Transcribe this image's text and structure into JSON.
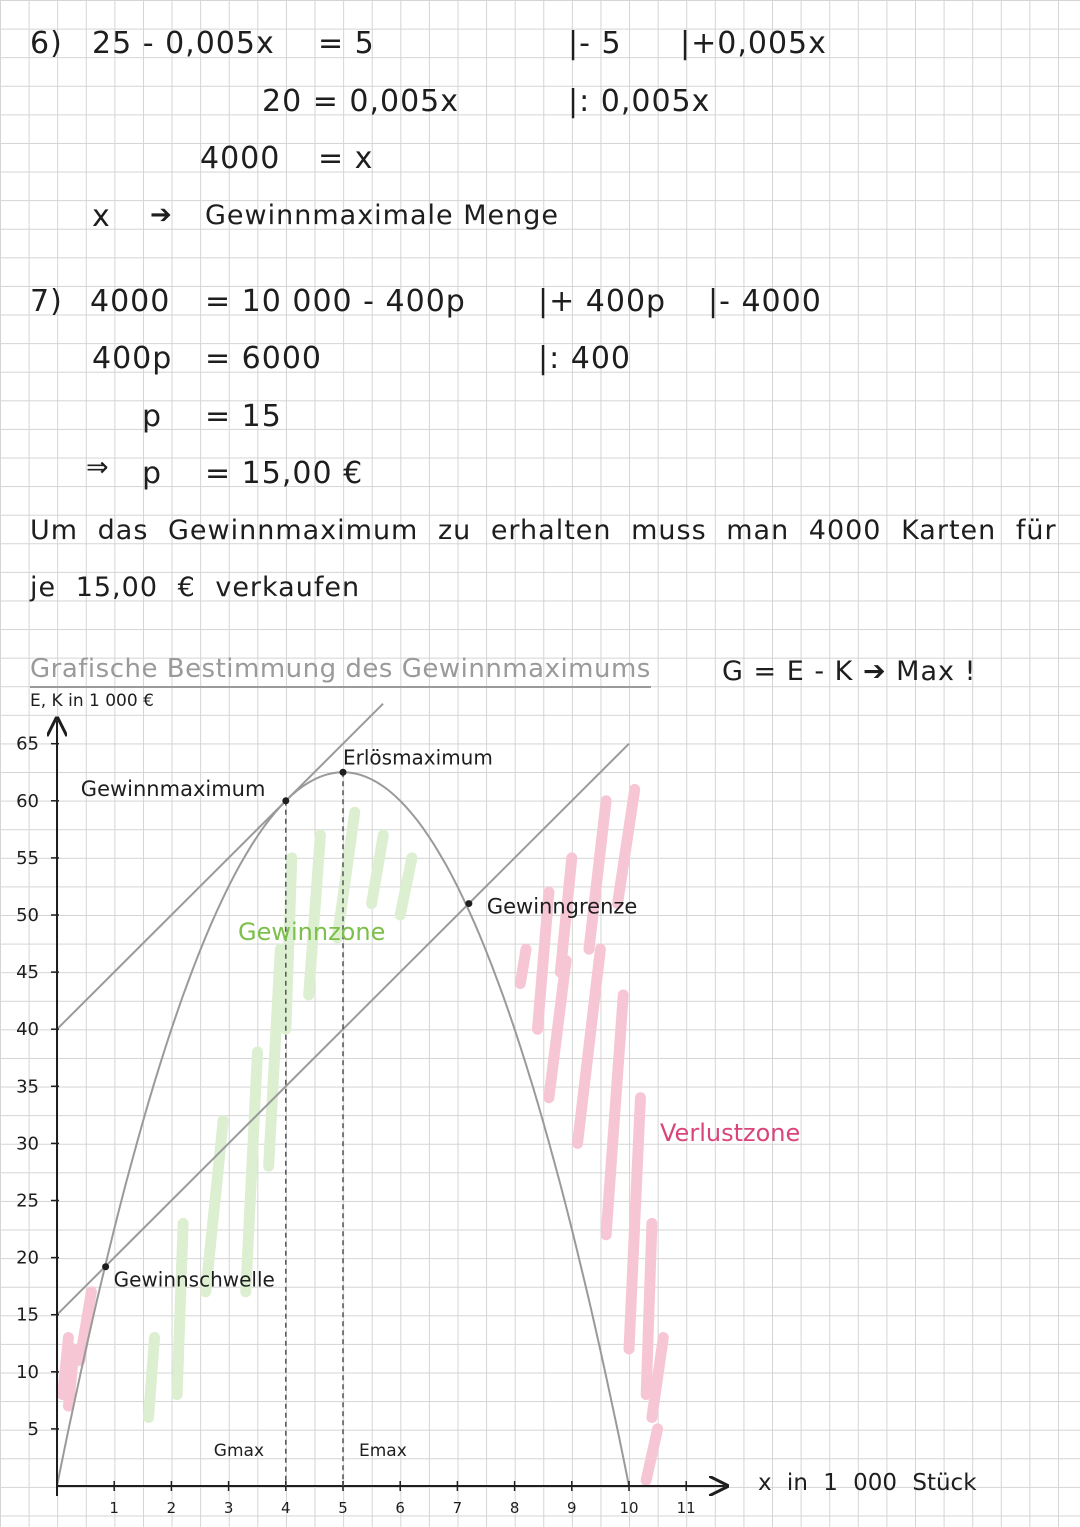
{
  "part6": {
    "label": "6)",
    "line1_lhs": "25 - 0,005x",
    "line1_rhs": "= 5",
    "line1_op1": "|- 5",
    "line1_op2": "|+0,005x",
    "line2": "20 = 0,005x",
    "line2_op": "|: 0,005x",
    "line3_lhs": "4000",
    "line3_rhs": "= x",
    "line4_x": "x",
    "line4_arrow": "➔",
    "line4_text": "Gewinnmaximale Menge"
  },
  "part7": {
    "label": "7)",
    "line1_lhs": "4000",
    "line1_rhs": "= 10 000 - 400p",
    "line1_op1": "|+ 400p",
    "line1_op2": "|- 4000",
    "line2_lhs": "400p",
    "line2_rhs": "= 6000",
    "line2_op": "|: 400",
    "line3_lhs": "p",
    "line3_rhs": "= 15",
    "line4_prefix": "⇒",
    "line4_lhs": "p",
    "line4_rhs": "= 15,00 €",
    "conclusion_line1": "Um das Gewinnmaximum zu erhalten muss man 4000 Karten für",
    "conclusion_line2": "je 15,00 € verkaufen"
  },
  "graph_section": {
    "heading": "Grafische Bestimmung des Gewinnmaximums",
    "formula": "G = E - K ➔ Max !"
  },
  "chart_data": {
    "type": "line",
    "ylabel": "E, K in 1 000 €",
    "xlabel": "x in 1 000 Stück",
    "x_ticks": [
      "1",
      "2",
      "3",
      "4",
      "5",
      "6",
      "7",
      "8",
      "9",
      "10",
      "11"
    ],
    "y_ticks": [
      "5",
      "10",
      "15",
      "20",
      "25",
      "30",
      "35",
      "40",
      "45",
      "50",
      "55",
      "60",
      "65"
    ],
    "xlim": [
      0,
      11.5
    ],
    "ylim": [
      0,
      66
    ],
    "series": [
      {
        "x": [
          0,
          1,
          2,
          3,
          4,
          5,
          6,
          7,
          8,
          9,
          10
        ],
        "y": [
          0,
          22.5,
          40,
          52.5,
          60,
          62.5,
          60,
          52.5,
          40,
          22.5,
          0
        ]
      },
      {
        "x": [
          0,
          10
        ],
        "y": [
          15,
          65
        ]
      },
      {
        "x": [
          0,
          5.7
        ],
        "y": [
          40,
          68.5
        ]
      }
    ],
    "points": {
      "gewinnschwelle": {
        "label": "Gewinnschwelle",
        "x": 0.85,
        "y": 19.2
      },
      "gewinnmaximum": {
        "label": "Gewinnmaximum",
        "x": 4,
        "y": 60
      },
      "erloesmaximum": {
        "label": "Erlösmaximum",
        "x": 5,
        "y": 62.5
      },
      "gewinngrenze": {
        "label": "Gewinngrenze",
        "x": 7.2,
        "y": 51
      }
    },
    "dashed_markers": [
      {
        "label": "Gmax",
        "x": 4
      },
      {
        "label": "Emax",
        "x": 5
      }
    ],
    "zones": {
      "gewinnzone": {
        "label": "Gewinnzone",
        "color": "#7cbf4a",
        "fill": "#dcefd0"
      },
      "verlustzone": {
        "label": "Verlustzone",
        "color": "#d9457a",
        "fill": "#f7c6d5"
      }
    },
    "curve_color": "#9a9a9a",
    "grid": true
  }
}
